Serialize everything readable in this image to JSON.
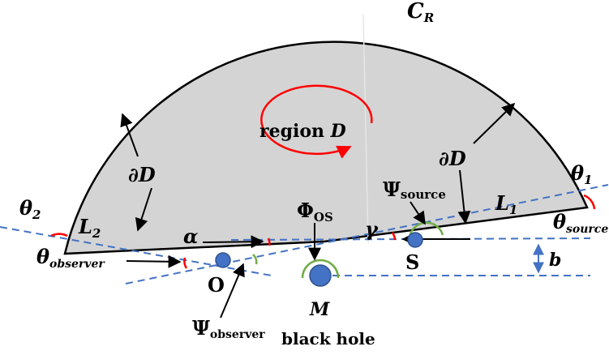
{
  "labels": {
    "C_R": "C",
    "C_R_sub": "R",
    "region": "region ",
    "region_D": "D",
    "dD_left": "∂D",
    "dD_right": "∂D",
    "theta2": "θ",
    "theta2_sub": "2",
    "theta1": "θ",
    "theta1_sub": "1",
    "L2": "L",
    "L2_sub": "2",
    "L1": "L",
    "L1_sub": "1",
    "alpha": "α",
    "gamma": "γ",
    "Phi": "Φ",
    "Phi_sub": "OS",
    "Psi_source": "Ψ",
    "Psi_source_sub": "source",
    "Psi_observer": "Ψ",
    "Psi_observer_sub": "observer",
    "theta_source": "θ",
    "theta_source_sub": "source",
    "theta_observer": "θ",
    "theta_observer_sub": "observer",
    "O": "O",
    "S": "S",
    "M": "M",
    "b": "b",
    "black_hole": "black hole"
  },
  "colors": {
    "region_fill": "#d4d4d4",
    "outline": "#000000",
    "dashed": "#4472c4",
    "point": "#4472c4",
    "arc_red": "#ff0000",
    "arc_green": "#70ad47",
    "b_arrow": "#4472c4"
  }
}
